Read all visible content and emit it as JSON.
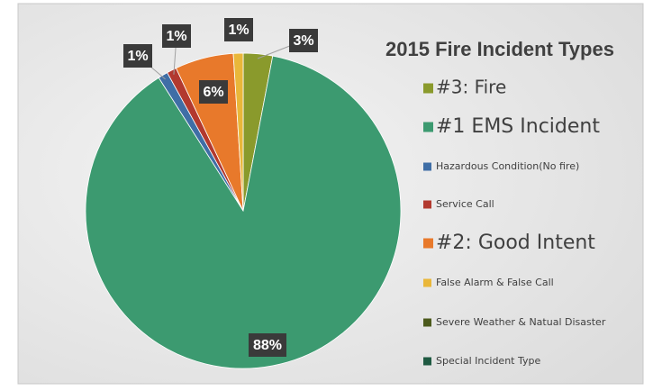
{
  "chart_data": {
    "type": "pie",
    "title": "2015 Fire Incident Types",
    "categories": [
      "#3: Fire",
      "#1 EMS Incident",
      "Hazardous Condition(No fire)",
      "Service Call",
      "#2: Good Intent",
      "False Alarm & False Call",
      "Severe Weather & Natual Disaster",
      "Special Incident Type"
    ],
    "values": [
      3,
      88,
      1,
      1,
      6,
      1,
      0,
      0
    ],
    "value_labels": [
      "3%",
      "88%",
      "1%",
      "1%",
      "6%",
      "1%",
      null,
      null
    ],
    "colors": [
      "#8a9a2c",
      "#3c9a70",
      "#3f6ea6",
      "#b2392f",
      "#e8792b",
      "#e9b73a",
      "#4c5a1c",
      "#1f5a42"
    ]
  }
}
